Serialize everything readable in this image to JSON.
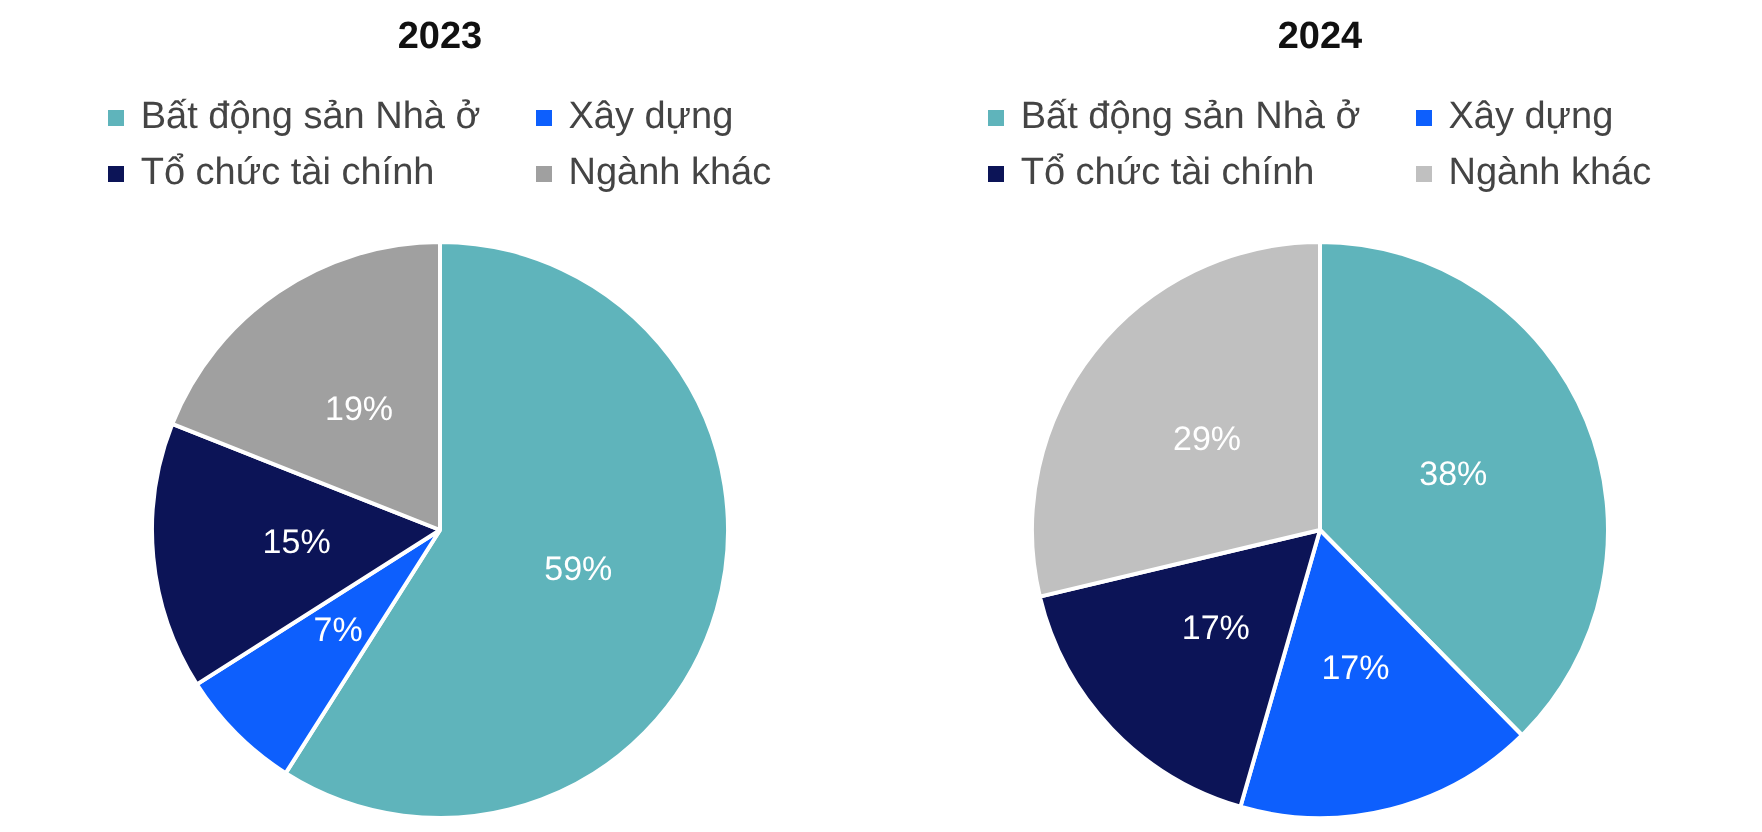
{
  "chart_data": [
    {
      "type": "pie",
      "title": "2023",
      "categories": [
        "Bất động sản Nhà ở",
        "Xây dựng",
        "Tổ chức tài chính",
        "Ngành khác"
      ],
      "values": [
        59,
        7,
        15,
        19
      ],
      "colors": [
        "#5fb4bb",
        "#0d5ffd",
        "#0c1457",
        "#a0a0a0"
      ],
      "value_labels": [
        "59%",
        "7%",
        "15%",
        "19%"
      ],
      "legend": "top"
    },
    {
      "type": "pie",
      "title": "2024",
      "categories": [
        "Bất động sản Nhà ở",
        "Xây dựng",
        "Tổ chức tài chính",
        "Ngành khác"
      ],
      "values": [
        38,
        17,
        17,
        29
      ],
      "colors": [
        "#5fb4bb",
        "#0d5ffd",
        "#0c1457",
        "#c0c0c0"
      ],
      "value_labels": [
        "38%",
        "17%",
        "17%",
        "29%"
      ],
      "legend": "top"
    }
  ]
}
